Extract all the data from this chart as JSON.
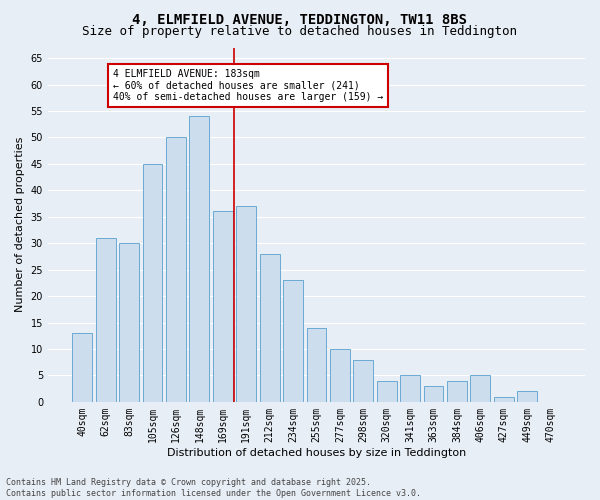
{
  "title": "4, ELMFIELD AVENUE, TEDDINGTON, TW11 8BS",
  "subtitle": "Size of property relative to detached houses in Teddington",
  "xlabel": "Distribution of detached houses by size in Teddington",
  "ylabel": "Number of detached properties",
  "categories": [
    "40sqm",
    "62sqm",
    "83sqm",
    "105sqm",
    "126sqm",
    "148sqm",
    "169sqm",
    "191sqm",
    "212sqm",
    "234sqm",
    "255sqm",
    "277sqm",
    "298sqm",
    "320sqm",
    "341sqm",
    "363sqm",
    "384sqm",
    "406sqm",
    "427sqm",
    "449sqm",
    "470sqm"
  ],
  "values": [
    13,
    31,
    30,
    45,
    50,
    54,
    36,
    37,
    28,
    23,
    14,
    10,
    8,
    4,
    5,
    3,
    4,
    5,
    1,
    2,
    0
  ],
  "bar_color": "#ccdded",
  "bar_edge_color": "#6aaad4",
  "vline_x_index": 7,
  "vline_color": "#cc0000",
  "annotation_text": "4 ELMFIELD AVENUE: 183sqm\n← 60% of detached houses are smaller (241)\n40% of semi-detached houses are larger (159) →",
  "annotation_box_color": "#ffffff",
  "annotation_box_edge": "#cc0000",
  "ylim": [
    0,
    67
  ],
  "yticks": [
    0,
    5,
    10,
    15,
    20,
    25,
    30,
    35,
    40,
    45,
    50,
    55,
    60,
    65
  ],
  "background_color": "#e8eef5",
  "grid_color": "#ffffff",
  "footer": "Contains HM Land Registry data © Crown copyright and database right 2025.\nContains public sector information licensed under the Open Government Licence v3.0.",
  "title_fontsize": 10,
  "subtitle_fontsize": 9,
  "xlabel_fontsize": 8,
  "ylabel_fontsize": 8,
  "tick_fontsize": 7,
  "annot_fontsize": 7,
  "footer_fontsize": 6
}
